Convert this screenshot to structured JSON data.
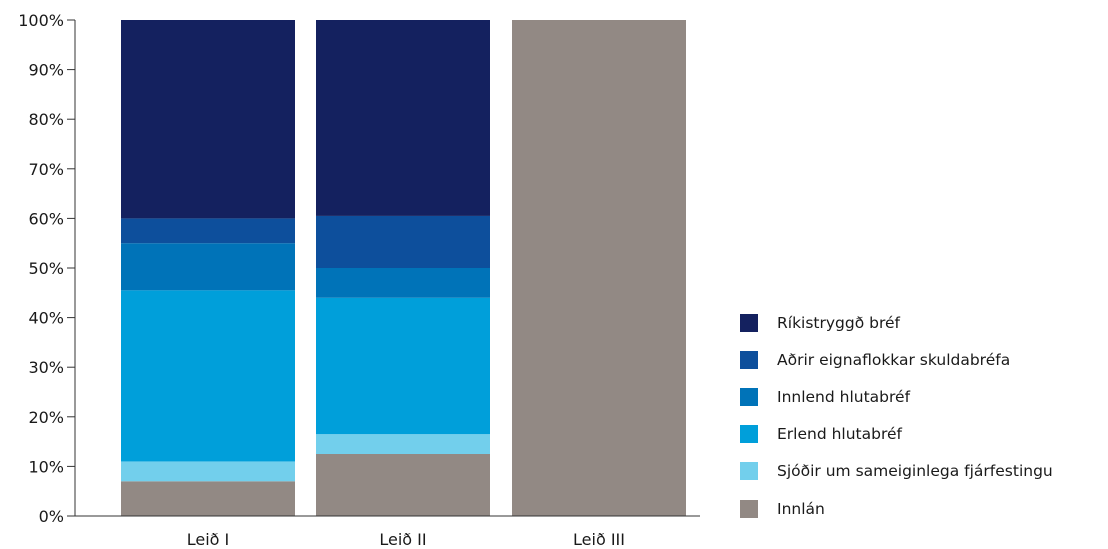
{
  "chart_data": {
    "type": "bar",
    "stacked": true,
    "categories": [
      "Leið I",
      "Leið II",
      "Leið III"
    ],
    "ylim": [
      0,
      100
    ],
    "yticks": [
      "0%",
      "10%",
      "20%",
      "30%",
      "40%",
      "50%",
      "60%",
      "70%",
      "80%",
      "90%",
      "100%"
    ],
    "legend_position": "right",
    "grid": false,
    "series": [
      {
        "name": "Innlán",
        "color": "#928984",
        "values": [
          7,
          12.5,
          100
        ]
      },
      {
        "name": "Sjóðir um sameiginlega fjárfestingu",
        "color": "#72cfec",
        "values": [
          4,
          4,
          0
        ]
      },
      {
        "name": "Erlend hlutabréf",
        "color": "#009fda",
        "values": [
          34.5,
          27.5,
          0
        ]
      },
      {
        "name": "Innlend hlutabréf",
        "color": "#0073b8",
        "values": [
          9.5,
          6,
          0
        ]
      },
      {
        "name": "Aðrir eignaflokkar skuldabréfa",
        "color": "#0d4f9c",
        "values": [
          5,
          10.5,
          0
        ]
      },
      {
        "name": "Ríkistryggð bréf",
        "color": "#14215f",
        "values": [
          40,
          39.5,
          0
        ]
      }
    ]
  }
}
